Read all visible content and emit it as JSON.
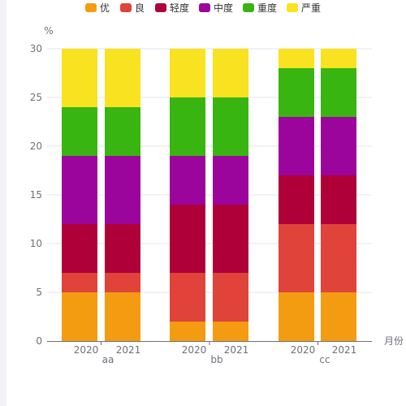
{
  "chart_data": {
    "type": "bar",
    "stacked": true,
    "ylabel": "%",
    "xlabel": "月份",
    "ylim": [
      0,
      30
    ],
    "yticks": [
      0,
      5,
      10,
      15,
      20,
      25,
      30
    ],
    "grid": true,
    "legend_position": "top-center",
    "groups": [
      {
        "label": "aa",
        "categories": [
          "2020",
          "2021"
        ]
      },
      {
        "label": "bb",
        "categories": [
          "2020",
          "2021"
        ]
      },
      {
        "label": "cc",
        "categories": [
          "2020",
          "2021"
        ]
      }
    ],
    "series": [
      {
        "name": "优",
        "color": "#f39c12",
        "values": [
          5,
          5,
          2,
          2,
          5,
          5
        ]
      },
      {
        "name": "良",
        "color": "#e04339",
        "values": [
          2,
          2,
          5,
          5,
          7,
          7
        ]
      },
      {
        "name": "轻度",
        "color": "#b0003a",
        "values": [
          5,
          5,
          7,
          7,
          5,
          5
        ]
      },
      {
        "name": "中度",
        "color": "#9b059b",
        "values": [
          7,
          7,
          5,
          5,
          6,
          6
        ]
      },
      {
        "name": "重度",
        "color": "#38b510",
        "values": [
          5,
          5,
          6,
          6,
          5,
          5
        ]
      },
      {
        "name": "严重",
        "color": "#f9e21f",
        "values": [
          6,
          6,
          5,
          5,
          2,
          2
        ]
      }
    ]
  }
}
